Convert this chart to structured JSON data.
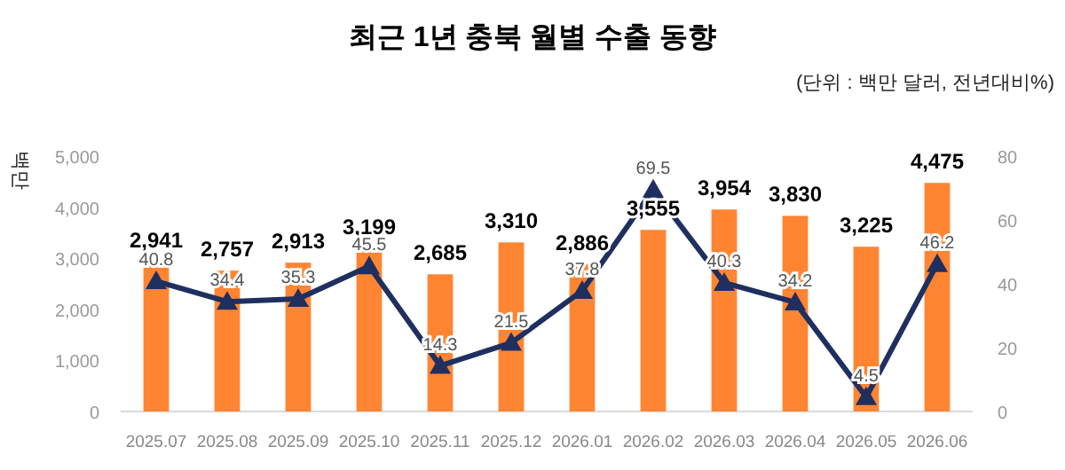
{
  "chart_data": {
    "type": "bar",
    "title": "최근 1년 충북 월별 수출 동향",
    "subtitle": "(단위 : 백만 달러, 전년대비%)",
    "ylabel": "백만",
    "categories": [
      "2025.07",
      "2025.08",
      "2025.09",
      "2025.10",
      "2025.11",
      "2025.12",
      "2026.01",
      "2026.02",
      "2026.03",
      "2026.04",
      "2026.05",
      "2026.06"
    ],
    "series": [
      {
        "color": "#ff8533",
        "values": [
          2941,
          2757,
          2913,
          3199,
          2685,
          3310,
          2886,
          3555,
          3954,
          3830,
          3225,
          4475
        ],
        "value_labels": [
          "2,941",
          "2,757",
          "2,913",
          "3,199",
          "2,685",
          "3,310",
          "2,886",
          "3,555",
          "3,954",
          "3,830",
          "3,225",
          "4,475"
        ]
      },
      {
        "type": "line",
        "axis": "y2",
        "color": "#1f2f5f",
        "marker": "triangle",
        "values": [
          40.8,
          34.4,
          35.3,
          45.5,
          14.3,
          21.5,
          37.8,
          69.5,
          40.3,
          34.2,
          4.5,
          46.2
        ]
      }
    ],
    "ylim": [
      0,
      5000
    ],
    "yticks": [
      {
        "value": 0,
        "label": "0"
      },
      {
        "value": 1000,
        "label": "1,000"
      },
      {
        "value": 2000,
        "label": "2,000"
      },
      {
        "value": 3000,
        "label": "3,000"
      },
      {
        "value": 4000,
        "label": "4,000"
      },
      {
        "value": 5000,
        "label": "5,000"
      }
    ],
    "y2lim": [
      0,
      80
    ],
    "y2ticks": [
      0,
      20,
      40,
      60,
      80
    ],
    "data_labels": true,
    "grid": false
  }
}
